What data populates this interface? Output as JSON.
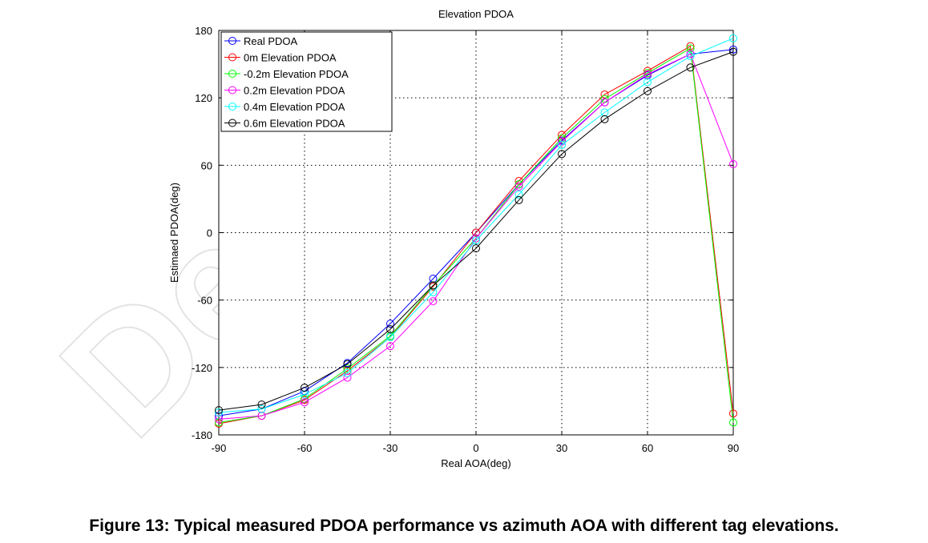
{
  "chart_data": {
    "type": "line",
    "title": "Elevation PDOA",
    "xlabel": "Real AOA(deg)",
    "ylabel": "Estimaed PDOA(deg)",
    "xlim": [
      -90,
      90
    ],
    "ylim": [
      -180,
      180
    ],
    "xticks": [
      -90,
      -60,
      -30,
      0,
      30,
      60,
      90
    ],
    "yticks": [
      -180,
      -120,
      -60,
      0,
      60,
      120,
      180
    ],
    "grid": true,
    "legend_position": "top-left",
    "marker": "circle",
    "x": [
      -90,
      -75,
      -60,
      -45,
      -30,
      -15,
      0,
      15,
      30,
      45,
      60,
      75,
      90
    ],
    "series": [
      {
        "name": "Real PDOA",
        "color": "#0000ff",
        "values": [
          -163,
          -157,
          -141,
          -116,
          -81,
          -41,
          0,
          43,
          82,
          116,
          140,
          159,
          163
        ]
      },
      {
        "name": "0m Elevation PDOA",
        "color": "#ff0000",
        "values": [
          -170,
          -163,
          -149,
          -123,
          -93,
          -48,
          0,
          46,
          87,
          123,
          144,
          166,
          -161
        ]
      },
      {
        "name": "-0.2m Elevation PDOA",
        "color": "#00ff00",
        "values": [
          -169,
          -163,
          -148,
          -121,
          -92,
          -47,
          -5,
          43,
          84,
          119,
          142,
          164,
          -169
        ]
      },
      {
        "name": "0.2m Elevation PDOA",
        "color": "#ff00ff",
        "values": [
          -166,
          -163,
          -151,
          -129,
          -101,
          -61,
          -5,
          41,
          81,
          116,
          141,
          159,
          61
        ]
      },
      {
        "name": "0.4m Elevation PDOA",
        "color": "#00ffff",
        "values": [
          -160,
          -157,
          -144,
          -125,
          -93,
          -53,
          -7,
          34,
          78,
          107,
          134,
          157,
          173
        ]
      },
      {
        "name": "0.6m Elevation PDOA",
        "color": "#000000",
        "values": [
          -158,
          -153,
          -138,
          -117,
          -86,
          -47,
          -14,
          29,
          70,
          101,
          126,
          147,
          161
        ]
      }
    ]
  },
  "caption": "Figure 13: Typical measured PDOA performance vs azimuth AOA with different tag elevations.",
  "watermark": "De"
}
